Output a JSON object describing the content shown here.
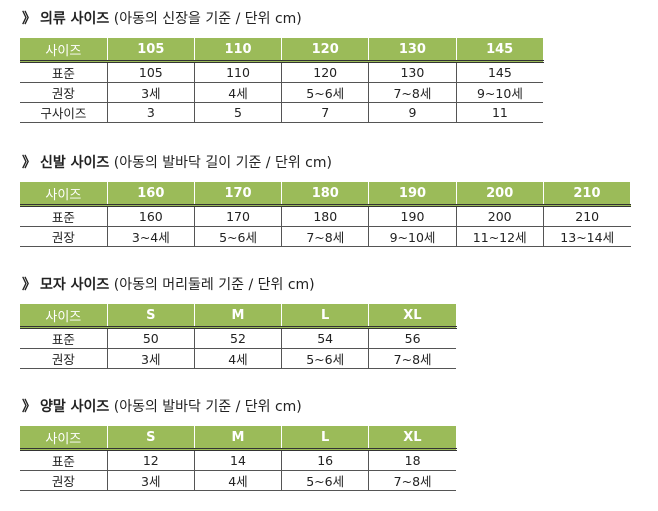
{
  "sections": [
    {
      "arrow": "》",
      "name": "의류 사이즈",
      "note": "(아동의 신장을 기준 / 단위 cm)",
      "header": [
        "사이즈",
        "105",
        "110",
        "120",
        "130",
        "145"
      ],
      "rows": [
        [
          "표준",
          "105",
          "110",
          "120",
          "130",
          "145"
        ],
        [
          "권장",
          "3세",
          "4세",
          "5~6세",
          "7~8세",
          "9~10세"
        ],
        [
          "구사이즈",
          "3",
          "5",
          "7",
          "9",
          "11"
        ]
      ]
    },
    {
      "arrow": "》",
      "name": "신발 사이즈",
      "note": "(아동의 발바닥 길이 기준 / 단위 cm)",
      "header": [
        "사이즈",
        "160",
        "170",
        "180",
        "190",
        "200",
        "210"
      ],
      "rows": [
        [
          "표준",
          "160",
          "170",
          "180",
          "190",
          "200",
          "210"
        ],
        [
          "권장",
          "3~4세",
          "5~6세",
          "7~8세",
          "9~10세",
          "11~12세",
          "13~14세"
        ]
      ]
    },
    {
      "arrow": "》",
      "name": "모자 사이즈",
      "note": "(아동의 머리둘레 기준 / 단위 cm)",
      "header": [
        "사이즈",
        "S",
        "M",
        "L",
        "XL"
      ],
      "rows": [
        [
          "표준",
          "50",
          "52",
          "54",
          "56"
        ],
        [
          "권장",
          "3세",
          "4세",
          "5~6세",
          "7~8세"
        ]
      ]
    },
    {
      "arrow": "》",
      "name": "양말 사이즈",
      "note": "(아동의 발바닥 기준 / 단위 cm)",
      "header": [
        "사이즈",
        "S",
        "M",
        "L",
        "XL"
      ],
      "rows": [
        [
          "표준",
          "12",
          "14",
          "16",
          "18"
        ],
        [
          "권장",
          "3세",
          "4세",
          "5~6세",
          "7~8세"
        ]
      ]
    }
  ],
  "colors": {
    "header_bg": "#9bbb59",
    "header_text": "#ffffff"
  }
}
